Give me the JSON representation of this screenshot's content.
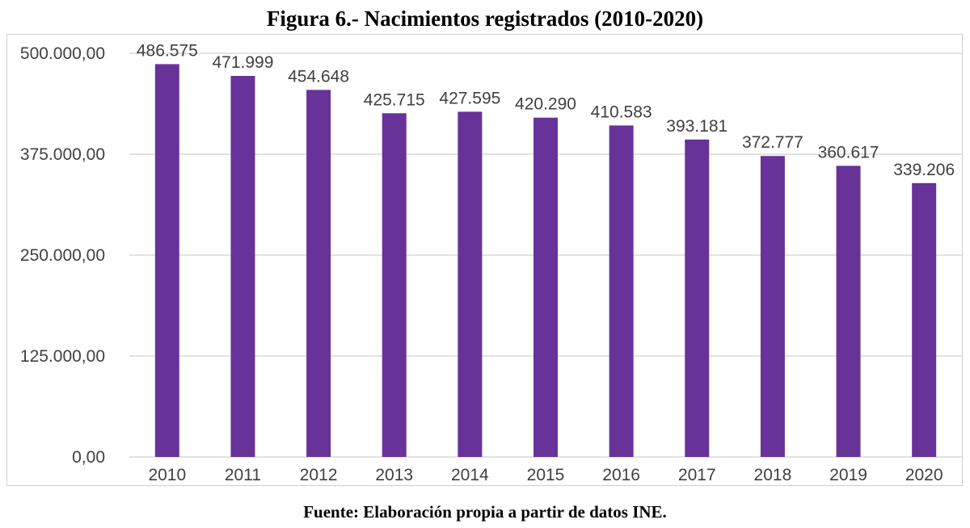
{
  "chart_data": {
    "type": "bar",
    "title": "Figura 6.- Nacimientos registrados (2010-2020)",
    "source": "Fuente: Elaboración propia a partir de datos INE.",
    "categories": [
      "2010",
      "2011",
      "2012",
      "2013",
      "2014",
      "2015",
      "2016",
      "2017",
      "2018",
      "2019",
      "2020"
    ],
    "values": [
      486575,
      471999,
      454648,
      425715,
      427595,
      420290,
      410583,
      393181,
      372777,
      360617,
      339206
    ],
    "data_labels": [
      "486.575",
      "471.999",
      "454.648",
      "425.715",
      "427.595",
      "420.290",
      "410.583",
      "393.181",
      "372.777",
      "360.617",
      "339.206"
    ],
    "yticks": [
      0,
      125000,
      250000,
      375000,
      500000
    ],
    "ytick_labels": [
      "0,00",
      "125.000,00",
      "250.000,00",
      "375.000,00",
      "500.000,00"
    ],
    "ylim": [
      0,
      500000
    ],
    "xlabel": "",
    "ylabel": "",
    "grid": true,
    "legend": false,
    "bar_color": "#673399",
    "grid_color": "#d9d9d9"
  }
}
